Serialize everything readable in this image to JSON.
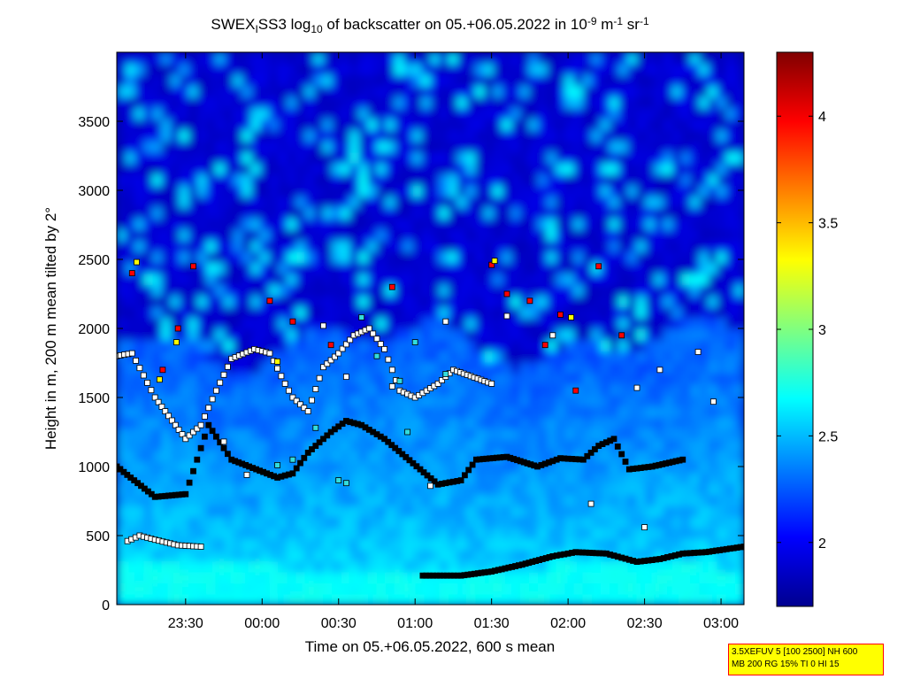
{
  "chart_data": {
    "type": "heatmap",
    "title": {
      "parts": [
        {
          "t": "SWEX",
          "s": "n"
        },
        {
          "t": "I",
          "s": "sub"
        },
        {
          "t": "SS3 log",
          "s": "n"
        },
        {
          "t": "10",
          "s": "sub"
        },
        {
          "t": " of backscatter on 05.+06.05.2022 in 10",
          "s": "n"
        },
        {
          "t": "-9",
          "s": "sup"
        },
        {
          "t": " m",
          "s": "n"
        },
        {
          "t": "-1",
          "s": "sup"
        },
        {
          "t": " sr",
          "s": "n"
        },
        {
          "t": "-1",
          "s": "sup"
        }
      ]
    },
    "xlabel": "Time on 05.+06.05.2022, 600 s mean",
    "ylabel": "Height in m, 200 m mean tilted by 2°",
    "x_range_hours": [
      23.05,
      27.15
    ],
    "ylim": [
      0,
      4000
    ],
    "x_ticks": [
      {
        "label": "23:30",
        "h": 23.5
      },
      {
        "label": "00:00",
        "h": 24.0
      },
      {
        "label": "00:30",
        "h": 24.5
      },
      {
        "label": "01:00",
        "h": 25.0
      },
      {
        "label": "01:30",
        "h": 25.5
      },
      {
        "label": "02:00",
        "h": 26.0
      },
      {
        "label": "02:30",
        "h": 26.5
      },
      {
        "label": "03:00",
        "h": 27.0
      }
    ],
    "y_ticks": [
      0,
      500,
      1000,
      1500,
      2000,
      2500,
      3000,
      3500
    ],
    "colorbar": {
      "min": 1.7,
      "max": 4.3,
      "ticks": [
        2,
        2.5,
        3,
        3.5,
        4
      ],
      "tick_labels": [
        "2",
        "2.5",
        "3",
        "3.5",
        "4"
      ],
      "colormap": "jet"
    },
    "field_description": {
      "background_value": 1.85,
      "lower_layer_top_m": 1900,
      "near_surface_value": 2.6
    },
    "layer_markers": [
      {
        "name": "surface layer",
        "color": "black",
        "points": [
          [
            25.05,
            210
          ],
          [
            25.3,
            210
          ],
          [
            25.5,
            240
          ],
          [
            25.7,
            290
          ],
          [
            25.9,
            350
          ],
          [
            26.05,
            380
          ],
          [
            26.25,
            370
          ],
          [
            26.35,
            340
          ],
          [
            26.45,
            310
          ],
          [
            26.6,
            330
          ],
          [
            26.75,
            370
          ],
          [
            26.9,
            380
          ],
          [
            27.15,
            420
          ]
        ]
      },
      {
        "name": "early near-surface layer",
        "color": "white",
        "points": [
          [
            23.12,
            460
          ],
          [
            23.2,
            500
          ],
          [
            23.3,
            470
          ],
          [
            23.45,
            430
          ],
          [
            23.6,
            420
          ]
        ]
      },
      {
        "name": "boundary layer top (white)",
        "color": "white",
        "points": [
          [
            23.05,
            1800
          ],
          [
            23.15,
            1820
          ],
          [
            23.3,
            1500
          ],
          [
            23.5,
            1200
          ],
          [
            23.6,
            1300
          ],
          [
            23.7,
            1550
          ],
          [
            23.8,
            1780
          ],
          [
            23.95,
            1850
          ],
          [
            24.05,
            1820
          ],
          [
            24.15,
            1600
          ],
          [
            24.2,
            1500
          ],
          [
            24.3,
            1400
          ],
          [
            24.4,
            1720
          ],
          [
            24.5,
            1820
          ],
          [
            24.6,
            1950
          ],
          [
            24.7,
            2000
          ],
          [
            24.8,
            1850
          ],
          [
            24.9,
            1550
          ],
          [
            25.0,
            1500
          ],
          [
            25.15,
            1600
          ],
          [
            25.25,
            1700
          ],
          [
            25.5,
            1600
          ]
        ]
      },
      {
        "name": "mid layer (black)",
        "color": "black",
        "points": [
          [
            23.05,
            1000
          ],
          [
            23.3,
            780
          ],
          [
            23.5,
            800
          ],
          [
            23.65,
            1300
          ],
          [
            23.8,
            1050
          ],
          [
            24.1,
            920
          ],
          [
            24.2,
            950
          ],
          [
            24.3,
            1100
          ],
          [
            24.45,
            1250
          ],
          [
            24.55,
            1330
          ],
          [
            24.65,
            1300
          ],
          [
            24.8,
            1200
          ],
          [
            25.15,
            870
          ],
          [
            25.3,
            900
          ],
          [
            25.4,
            1050
          ],
          [
            25.6,
            1070
          ],
          [
            25.8,
            1000
          ],
          [
            25.95,
            1060
          ],
          [
            26.1,
            1050
          ],
          [
            26.2,
            1150
          ],
          [
            26.3,
            1200
          ],
          [
            26.4,
            980
          ],
          [
            26.55,
            1000
          ],
          [
            26.75,
            1050
          ]
        ]
      },
      {
        "name": "cloud fragments (red)",
        "color": "red",
        "points": [
          [
            23.15,
            2400
          ],
          [
            23.35,
            1700
          ],
          [
            23.45,
            2000
          ],
          [
            23.55,
            2450
          ],
          [
            24.05,
            2200
          ],
          [
            24.2,
            2050
          ],
          [
            24.45,
            1880
          ],
          [
            24.85,
            2300
          ],
          [
            25.5,
            2460
          ],
          [
            25.6,
            2250
          ],
          [
            25.75,
            2200
          ],
          [
            25.85,
            1880
          ],
          [
            25.95,
            2100
          ],
          [
            26.05,
            1550
          ],
          [
            26.2,
            2450
          ],
          [
            26.35,
            1950
          ]
        ]
      },
      {
        "name": "cloud fragments (yellow)",
        "color": "yellow",
        "points": [
          [
            23.18,
            2480
          ],
          [
            23.33,
            1630
          ],
          [
            23.44,
            1900
          ],
          [
            24.1,
            1760
          ],
          [
            25.52,
            2490
          ],
          [
            26.02,
            2080
          ]
        ]
      },
      {
        "name": "cloud fragments (cyan)",
        "color": "cyan",
        "points": [
          [
            24.65,
            2080
          ],
          [
            24.75,
            1800
          ],
          [
            24.9,
            1620
          ],
          [
            25.0,
            1900
          ],
          [
            25.2,
            1670
          ],
          [
            24.5,
            900
          ],
          [
            24.55,
            880
          ],
          [
            24.95,
            1250
          ],
          [
            24.35,
            1280
          ],
          [
            24.2,
            1050
          ],
          [
            24.1,
            1010
          ]
        ]
      },
      {
        "name": "isolated points (white)",
        "color": "white",
        "points": [
          [
            23.75,
            1180
          ],
          [
            23.9,
            940
          ],
          [
            24.4,
            2020
          ],
          [
            24.55,
            1650
          ],
          [
            24.85,
            1580
          ],
          [
            25.1,
            860
          ],
          [
            25.2,
            2050
          ],
          [
            25.6,
            2090
          ],
          [
            25.9,
            1950
          ],
          [
            26.15,
            730
          ],
          [
            26.5,
            560
          ],
          [
            26.6,
            1700
          ],
          [
            26.85,
            1830
          ],
          [
            26.95,
            1470
          ],
          [
            26.45,
            1570
          ]
        ]
      }
    ]
  },
  "info_box": {
    "line1": "3.5XEFUV 5 [100 2500] NH 600",
    "line2": "MB 200 RG 15% TI 0 HI 15"
  }
}
